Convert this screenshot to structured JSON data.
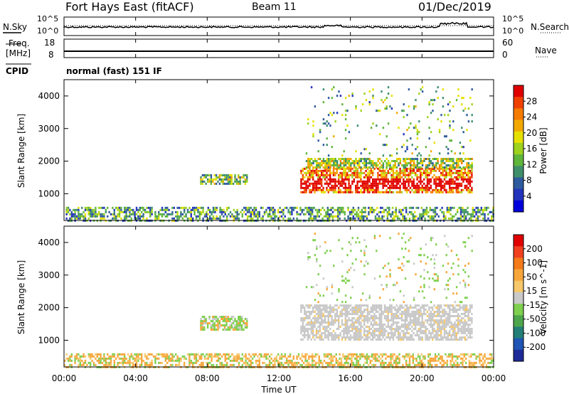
{
  "header": {
    "radar": "Fort Hays East (fitACF)",
    "beam": "Beam 11",
    "date": "01/Dec/2019"
  },
  "noise_panel": {
    "left_label": "N.Sky",
    "right_label": "N.Search",
    "left_ticks": [
      "10^5",
      "10^0"
    ],
    "right_ticks": [
      "10^5",
      "10^0"
    ]
  },
  "freq_panel": {
    "left_label_1": "Freq.",
    "left_label_2": "[MHz]",
    "right_label": "Nave",
    "left_ticks": [
      "18",
      "8"
    ],
    "right_ticks": [
      "60",
      "0"
    ]
  },
  "cpid": {
    "label": "CPID",
    "value": "normal (fast) 151 IF"
  },
  "chart_data": [
    {
      "type": "heatmap",
      "parameter": "power",
      "ylabel": "Slant Range [km]",
      "yticks": [
        "4000",
        "3000",
        "2000",
        "1000"
      ],
      "ylim": [
        180,
        4500
      ],
      "colorbar_label": "Power [dB]",
      "colorbar_ticks": [
        "28",
        "24",
        "20",
        "16",
        "12",
        "8",
        "4"
      ],
      "colorbar_colors": [
        "#0000dd",
        "#2233bb",
        "#2e5a9e",
        "#3f8f6b",
        "#5fb63a",
        "#9ed21e",
        "#e6e000",
        "#f2a800",
        "#f57a00",
        "#f04000",
        "#e00000"
      ],
      "features": [
        {
          "name": "ground scatter",
          "t": [
            0,
            24
          ],
          "r": [
            180,
            600
          ],
          "level": 0.35
        },
        {
          "name": "F-region 08UT",
          "t": [
            7.6,
            10.2
          ],
          "r": [
            1300,
            1600
          ],
          "level": 0.45
        },
        {
          "name": "main band",
          "t": [
            13.2,
            22.8
          ],
          "r": [
            1050,
            1800
          ],
          "level": 0.85
        },
        {
          "name": "upper band",
          "t": [
            13.5,
            22.8
          ],
          "r": [
            1800,
            2100
          ],
          "level": 0.5
        },
        {
          "name": "sparse high",
          "t": [
            13.5,
            22.8
          ],
          "r": [
            2200,
            4300
          ],
          "level": 0.4
        }
      ]
    },
    {
      "type": "heatmap",
      "parameter": "velocity",
      "ylabel": "Slant Range [km]",
      "yticks": [
        "4000",
        "3000",
        "2000",
        "1000"
      ],
      "ylim": [
        180,
        4500
      ],
      "colorbar_label": "Velocity [m s^-1]",
      "colorbar_ticks": [
        "200",
        "100",
        "50",
        "15",
        "-15",
        "-50",
        "-100",
        "-200"
      ],
      "colorbar_colors": [
        "#1f2a99",
        "#1f55b5",
        "#237f78",
        "#4ea64c",
        "#7fd04f",
        "#c9c9c9",
        "#f7c86a",
        "#f7a63a",
        "#f57a1a",
        "#f04020",
        "#e00000"
      ],
      "features": [
        {
          "name": "ground scatter",
          "t": [
            0,
            24
          ],
          "r": [
            180,
            600
          ]
        },
        {
          "name": "F-region 08UT",
          "t": [
            7.6,
            10.2
          ],
          "r": [
            1300,
            1750
          ]
        },
        {
          "name": "main band (grey)",
          "t": [
            13.2,
            22.8
          ],
          "r": [
            1050,
            2100
          ]
        },
        {
          "name": "sparse high",
          "t": [
            13.5,
            22.8
          ],
          "r": [
            2200,
            4300
          ]
        }
      ]
    }
  ],
  "xaxis": {
    "ticks": [
      "00:00",
      "04:00",
      "08:00",
      "12:00",
      "16:00",
      "20:00",
      "00:00"
    ],
    "label": "Time UT"
  }
}
